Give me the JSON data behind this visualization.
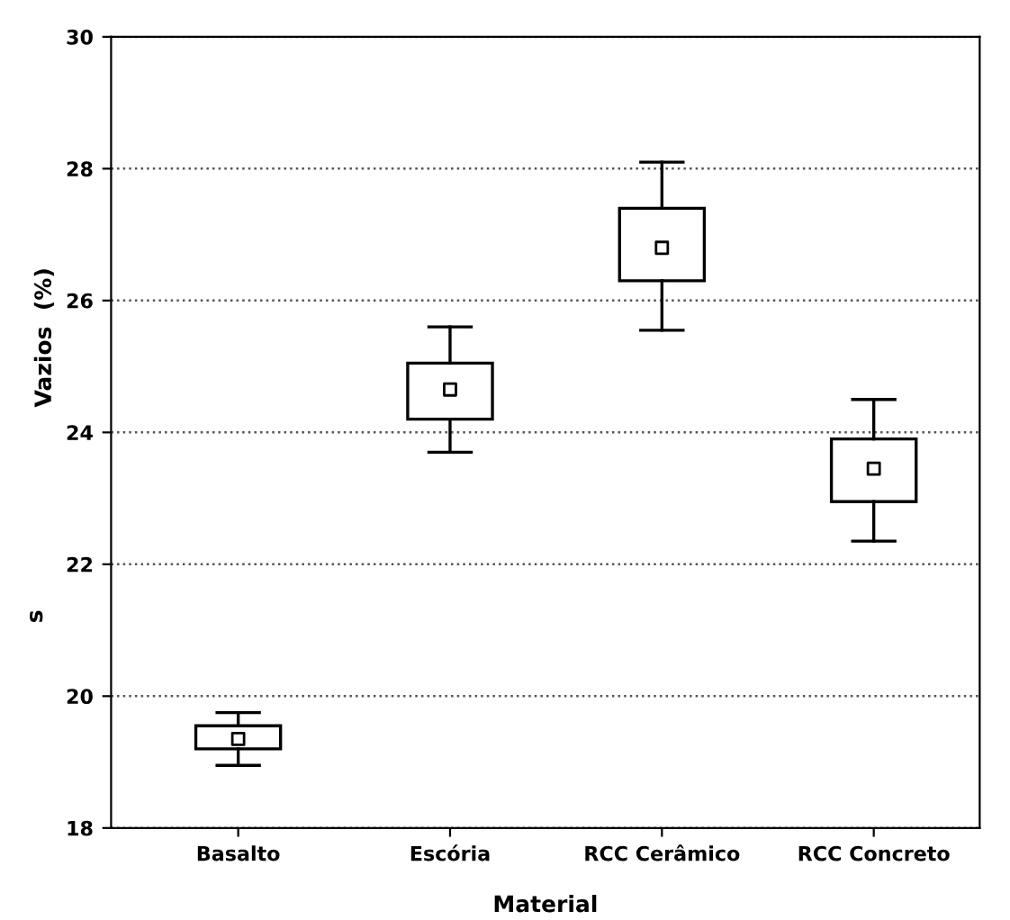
{
  "chart_data": {
    "type": "box",
    "xlabel": "Material",
    "ylabel": "Vazios  (%)",
    "annotations": [
      "s"
    ],
    "categories": [
      "Basalto",
      "Escória",
      "RCC Cerâmico",
      "RCC Concreto"
    ],
    "boxes": [
      {
        "low": 18.95,
        "q1": 19.2,
        "median": 19.35,
        "q3": 19.55,
        "high": 19.75
      },
      {
        "low": 23.7,
        "q1": 24.2,
        "median": 24.65,
        "q3": 25.05,
        "high": 25.6
      },
      {
        "low": 25.55,
        "q1": 26.3,
        "median": 26.8,
        "q3": 27.4,
        "high": 28.1
      },
      {
        "low": 22.35,
        "q1": 22.95,
        "median": 23.45,
        "q3": 23.9,
        "high": 24.5
      }
    ],
    "color": "#000000",
    "marker": "square",
    "ylim": [
      18,
      30
    ],
    "yticks": [
      18,
      20,
      22,
      24,
      26,
      28,
      30
    ],
    "grid": "y"
  }
}
